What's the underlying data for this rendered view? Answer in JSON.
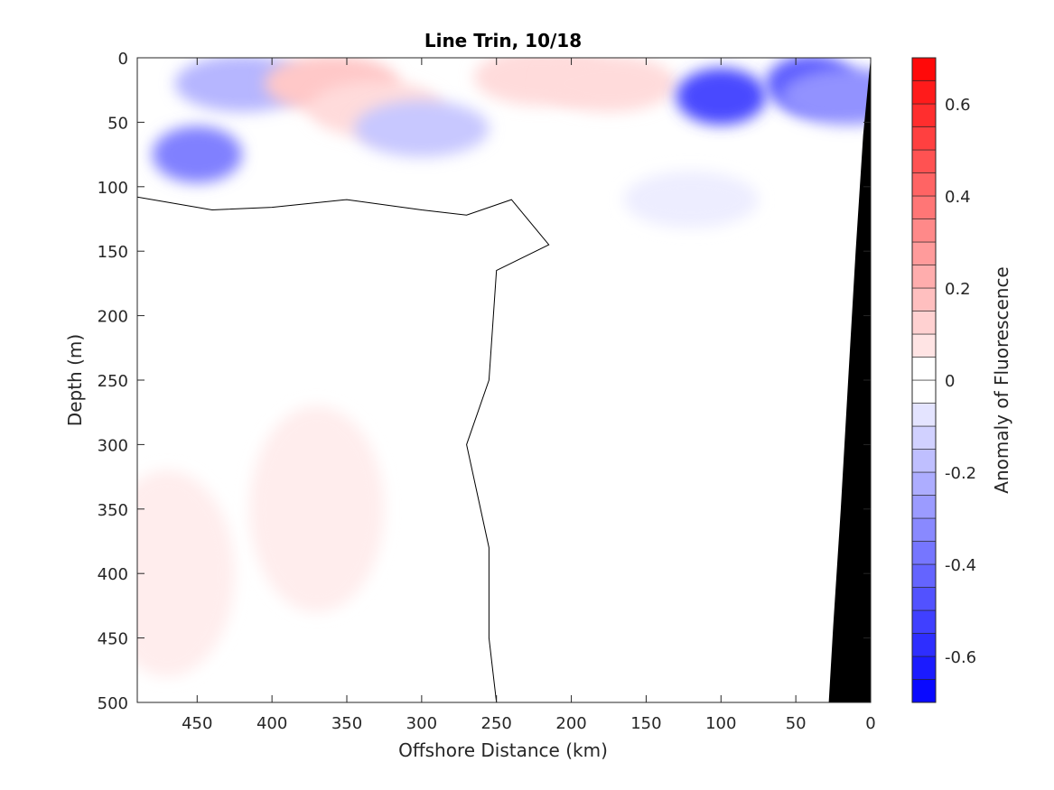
{
  "chart_data": {
    "type": "heatmap",
    "title": "Line Trin, 10/18",
    "xlabel": "Offshore Distance (km)",
    "ylabel": "Depth (m)",
    "xlim": [
      490,
      0
    ],
    "ylim": [
      500,
      0
    ],
    "x_direction": "reversed",
    "y_direction": "depth-increasing-downward",
    "x_ticks": [
      450,
      400,
      350,
      300,
      250,
      200,
      150,
      100,
      50,
      0
    ],
    "x_tick_labels": [
      "450",
      "400",
      "350",
      "300",
      "250",
      "200",
      "150",
      "100",
      "50",
      "0"
    ],
    "y_ticks": [
      0,
      50,
      100,
      150,
      200,
      250,
      300,
      350,
      400,
      450,
      500
    ],
    "y_tick_labels": [
      "0",
      "50",
      "100",
      "150",
      "200",
      "250",
      "300",
      "350",
      "400",
      "450",
      "500"
    ],
    "colorbar": {
      "label": "Anomaly of Fluorescence",
      "range": [
        -0.7,
        0.7
      ],
      "step": 0.05,
      "ticks": [
        -0.6,
        -0.4,
        -0.2,
        0,
        0.2,
        0.4,
        0.6
      ],
      "tick_labels": [
        "-0.6",
        "-0.4",
        "-0.2",
        "0",
        "0.2",
        "0.4",
        "0.6"
      ],
      "negative_color": "#0000ff",
      "positive_color": "#ff0000",
      "neutral_color": "#ffffff"
    },
    "zero_contour_color": "#000000",
    "bathymetry_color": "#000000",
    "bathymetry": {
      "points": [
        [
          0,
          0
        ],
        [
          5,
          60
        ],
        [
          10,
          150
        ],
        [
          15,
          250
        ],
        [
          20,
          350
        ],
        [
          25,
          440
        ],
        [
          28,
          500
        ]
      ]
    },
    "anomaly_features": [
      {
        "x": 450,
        "y": 75,
        "value": -0.35
      },
      {
        "x": 420,
        "y": 20,
        "value": -0.2
      },
      {
        "x": 360,
        "y": 20,
        "value": 0.15
      },
      {
        "x": 330,
        "y": 40,
        "value": 0.1
      },
      {
        "x": 220,
        "y": 15,
        "value": 0.1
      },
      {
        "x": 175,
        "y": 20,
        "value": 0.1
      },
      {
        "x": 100,
        "y": 30,
        "value": -0.5
      },
      {
        "x": 40,
        "y": 20,
        "value": -0.45
      },
      {
        "x": 15,
        "y": 30,
        "value": -0.3
      },
      {
        "x": 300,
        "y": 55,
        "value": -0.15
      },
      {
        "x": 120,
        "y": 110,
        "value": -0.05
      },
      {
        "x": 370,
        "y": 350,
        "value": 0.05
      },
      {
        "x": 470,
        "y": 400,
        "value": 0.05
      }
    ]
  }
}
